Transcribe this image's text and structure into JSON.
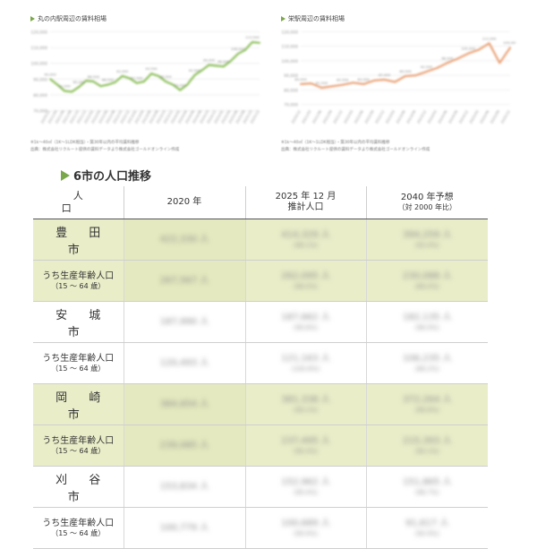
{
  "charts": [
    {
      "title": "丸の内駅周辺の賃料相場",
      "note1": "※1k～40㎡（1K～1LDK相当）・築30年以内の平均賃料推移",
      "note2": "出典：株式会社リクルート提供の賃料データより株式会社ゴールドオンライン作成",
      "chart_data": {
        "type": "line",
        "color": "#8cbf5a",
        "ylim": [
          72000,
          122000
        ],
        "y_ticks": [
          "120,000",
          "110,000",
          "100,000",
          "90,000",
          "80,000",
          "70,000"
        ],
        "x": [
          "2020/12",
          "2021/04",
          "2021/06",
          "2021/08",
          "2021/10",
          "2021/12",
          "2022/02",
          "2022/04",
          "2022/06",
          "2022/08",
          "2022/10",
          "2022/12",
          "2023/02",
          "2023/04",
          "2023/06",
          "2023/08",
          "2023/10",
          "2023/12",
          "2024/02",
          "2024/04",
          "2024/06",
          "2024/08",
          "2024/10",
          "2024/12",
          "2025/02",
          "2025/04",
          "2025/06",
          "2025/08",
          "2025/10",
          "2025/12"
        ],
        "values": [
          90000,
          86500,
          82500,
          82000,
          85000,
          89000,
          88500,
          85500,
          86500,
          88000,
          92000,
          90500,
          87500,
          88500,
          93500,
          92000,
          88500,
          86500,
          83000,
          86500,
          92500,
          95500,
          99000,
          98500,
          98000,
          101500,
          106000,
          108500,
          113500,
          113000
        ]
      }
    },
    {
      "title": "栄駅周辺の賃料相場",
      "note1": "※1k～40㎡（1K～1LDK相当）・築30年以内の平均賃料推移",
      "note2": "出典：株式会社リクルート提供の賃料データより株式会社ゴールドオンライン作成",
      "chart_data": {
        "type": "line",
        "color": "#e9a277",
        "ylim": [
          68000,
          122000
        ],
        "y_ticks": [
          "120,000",
          "110,000",
          "100,000",
          "90,000",
          "80,000",
          "70,000"
        ],
        "x": [
          "2020/12",
          "2021/03",
          "2021/06",
          "2021/09",
          "2021/12",
          "2022/03",
          "2022/06",
          "2022/09",
          "2022/12",
          "2023/03",
          "2023/06",
          "2023/09",
          "2023/12",
          "2024/03",
          "2024/06",
          "2024/09",
          "2024/12",
          "2025/03",
          "2025/06",
          "2025/09",
          "2025/12"
        ],
        "values": [
          84000,
          84500,
          81500,
          82500,
          83500,
          85000,
          84000,
          86500,
          87000,
          85500,
          89500,
          90000,
          92500,
          95000,
          98500,
          101500,
          105000,
          107500,
          112000,
          98500,
          109000
        ]
      }
    }
  ],
  "section_title": "6市の人口推移",
  "table": {
    "header": [
      "人　口",
      "2020 年",
      "2025 年 12 月\n推計人口",
      "2040 年予想\n（対 2000 年比）"
    ],
    "header_col1": "人　口",
    "header_col2": "2020 年",
    "header_col3_line1": "2025 年 12 月",
    "header_col3_line2": "推計人口",
    "header_col4_line1": "2040 年予想",
    "header_col4_line2": "（対 2000 年比）",
    "rows": [
      {
        "label": "豊 田 市",
        "sub": "",
        "highlight": true,
        "v2020": "422,330 人",
        "v2025": "414,329 人",
        "p2025": "（98.1%）",
        "v2040": "394,259 人",
        "p2040": "（93.4%）"
      },
      {
        "label": "うち生産年齢人口",
        "sub": "（15 ～ 64 歳）",
        "highlight": true,
        "v2020": "267,567 人",
        "v2025": "262,095 人",
        "p2025": "（98.0%）",
        "v2040": "230,088 人",
        "p2040": "（86.0%）"
      },
      {
        "label": "安 城 市",
        "sub": "",
        "highlight": false,
        "v2020": "187,990 人",
        "v2025": "187,662 人",
        "p2025": "（99.8%）",
        "v2040": "182,135 人",
        "p2040": "（96.9%）"
      },
      {
        "label": "うち生産年齢人口",
        "sub": "（15 ～ 64 歳）",
        "highlight": false,
        "v2020": "120,493 人",
        "v2025": "121,163 人",
        "p2025": "（100.6%）",
        "v2040": "106,235 人",
        "p2040": "（88.2%）"
      },
      {
        "label": "岡 崎 市",
        "sub": "",
        "highlight": true,
        "v2020": "384,654 人",
        "v2025": "381,338 人",
        "p2025": "（99.1%）",
        "v2040": "372,264 人",
        "p2040": "（96.8%）"
      },
      {
        "label": "うち生産年齢人口",
        "sub": "（15 ～ 64 歳）",
        "highlight": true,
        "v2020": "239,085 人",
        "v2025": "237,495 人",
        "p2025": "（99.3%）",
        "v2040": "215,393 人",
        "p2040": "（90.1%）"
      },
      {
        "label": "刈 谷 市",
        "sub": "",
        "highlight": false,
        "v2020": "153,834 人",
        "v2025": "152,962 人",
        "p2025": "（99.4%）",
        "v2040": "151,865 人",
        "p2040": "（98.7%）"
      },
      {
        "label": "うち生産年齢人口",
        "sub": "（15 ～ 64 歳）",
        "highlight": false,
        "v2020": "100,779 人",
        "v2025": "100,689 人",
        "p2025": "（99.9%）",
        "v2040": "91,617 人",
        "p2040": "（90.9%）"
      }
    ]
  }
}
